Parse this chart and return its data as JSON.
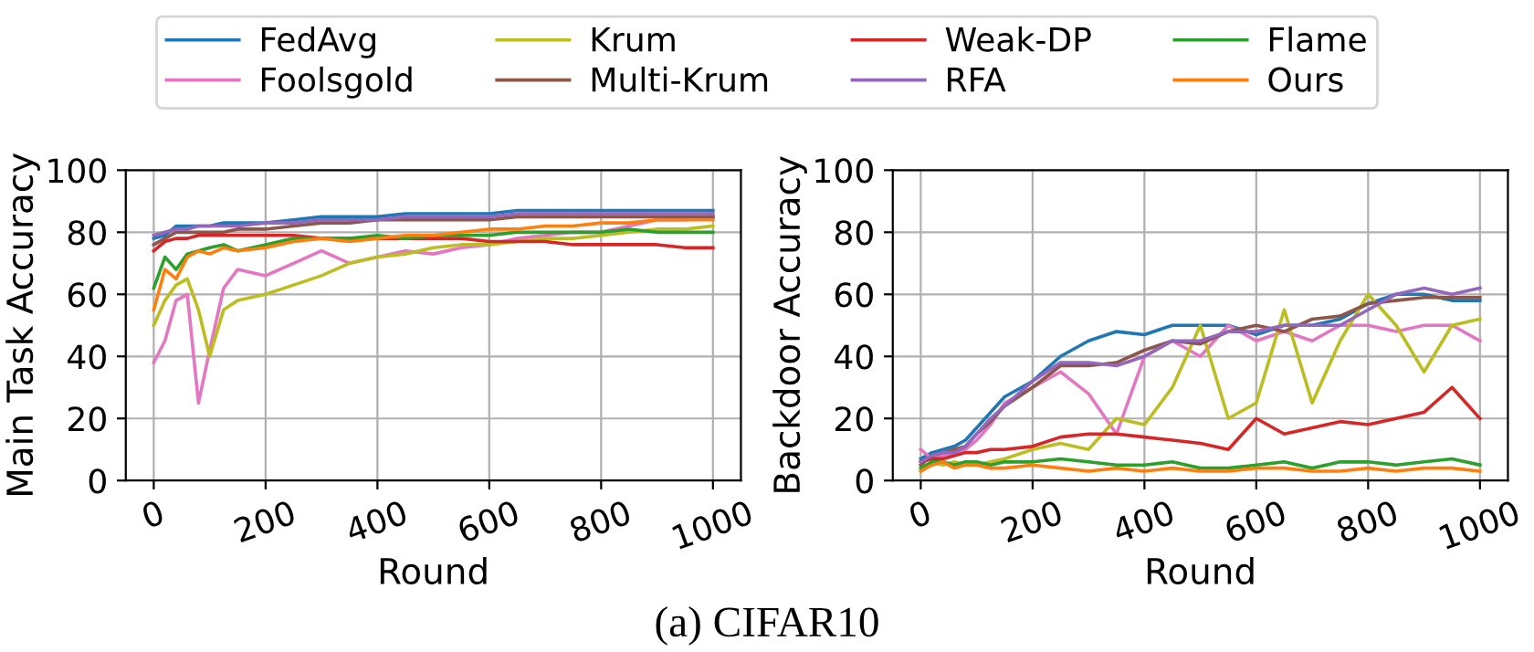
{
  "chart_data": [
    {
      "type": "line",
      "ylabel": "Main Task Accuracy",
      "xlabel": "Round",
      "legend": "top",
      "grid": true,
      "xlim": [
        -50,
        1050
      ],
      "ylim": [
        0,
        100
      ],
      "xticks": [
        0,
        200,
        400,
        600,
        800,
        1000
      ],
      "yticks": [
        0,
        20,
        40,
        60,
        80,
        100
      ],
      "annotations": [
        "(a) CIFAR10"
      ],
      "x": [
        0,
        20,
        40,
        60,
        80,
        100,
        125,
        150,
        200,
        250,
        300,
        350,
        400,
        450,
        500,
        550,
        600,
        650,
        700,
        750,
        800,
        850,
        900,
        950,
        1000
      ],
      "series": [
        {
          "name": "FedAvg",
          "color": "#1f77b4",
          "values": [
            78,
            79,
            82,
            82,
            82,
            82,
            83,
            83,
            83,
            84,
            85,
            85,
            85,
            86,
            86,
            86,
            86,
            87,
            87,
            87,
            87,
            87,
            87,
            87,
            87
          ]
        },
        {
          "name": "Foolsgold",
          "color": "#e377c2",
          "values": [
            38,
            45,
            58,
            60,
            25,
            42,
            62,
            68,
            66,
            70,
            74,
            70,
            72,
            74,
            73,
            75,
            76,
            78,
            79,
            80,
            80,
            82,
            84,
            84,
            85
          ]
        },
        {
          "name": "Krum",
          "color": "#bcbd22",
          "values": [
            50,
            58,
            63,
            65,
            55,
            40,
            55,
            58,
            60,
            63,
            66,
            70,
            72,
            73,
            75,
            76,
            76,
            77,
            78,
            78,
            79,
            80,
            81,
            81,
            82
          ]
        },
        {
          "name": "Multi-Krum",
          "color": "#8c564b",
          "values": [
            76,
            78,
            80,
            80,
            80,
            80,
            80,
            81,
            81,
            82,
            83,
            83,
            84,
            84,
            84,
            84,
            84,
            85,
            85,
            85,
            85,
            85,
            85,
            85,
            85
          ]
        },
        {
          "name": "Weak-DP",
          "color": "#d62728",
          "values": [
            74,
            77,
            78,
            78,
            79,
            79,
            79,
            79,
            79,
            79,
            78,
            78,
            78,
            78,
            78,
            78,
            77,
            77,
            77,
            76,
            76,
            76,
            76,
            75,
            75
          ]
        },
        {
          "name": "RFA",
          "color": "#9467bd",
          "values": [
            79,
            80,
            81,
            81,
            82,
            82,
            82,
            82,
            83,
            83,
            84,
            84,
            84,
            85,
            85,
            85,
            85,
            86,
            86,
            86,
            86,
            86,
            86,
            86,
            86
          ]
        },
        {
          "name": "Flame",
          "color": "#2ca02c",
          "values": [
            62,
            72,
            68,
            73,
            74,
            75,
            76,
            74,
            76,
            78,
            78,
            78,
            79,
            78,
            79,
            79,
            79,
            80,
            80,
            80,
            80,
            81,
            80,
            80,
            80
          ]
        },
        {
          "name": "Ours",
          "color": "#ff7f0e",
          "values": [
            55,
            68,
            65,
            72,
            74,
            73,
            75,
            74,
            75,
            77,
            78,
            77,
            78,
            79,
            79,
            80,
            81,
            81,
            82,
            82,
            83,
            83,
            84,
            84,
            84
          ]
        }
      ]
    },
    {
      "type": "line",
      "ylabel": "Backdoor Accuracy",
      "xlabel": "Round",
      "grid": true,
      "xlim": [
        -50,
        1050
      ],
      "ylim": [
        0,
        100
      ],
      "xticks": [
        0,
        200,
        400,
        600,
        800,
        1000
      ],
      "yticks": [
        0,
        20,
        40,
        60,
        80,
        100
      ],
      "x": [
        0,
        20,
        40,
        60,
        80,
        100,
        125,
        150,
        200,
        250,
        300,
        350,
        400,
        450,
        500,
        550,
        600,
        650,
        700,
        750,
        800,
        850,
        900,
        950,
        1000
      ],
      "series": [
        {
          "color": "#1f77b4",
          "values": [
            7,
            9,
            10,
            11,
            13,
            17,
            22,
            27,
            32,
            40,
            45,
            48,
            47,
            50,
            50,
            50,
            47,
            50,
            50,
            52,
            57,
            60,
            60,
            58,
            58
          ]
        },
        {
          "color": "#e377c2",
          "values": [
            10,
            7,
            8,
            9,
            10,
            13,
            18,
            25,
            30,
            35,
            28,
            15,
            40,
            45,
            40,
            50,
            45,
            48,
            45,
            50,
            50,
            48,
            50,
            50,
            45
          ]
        },
        {
          "color": "#bcbd22",
          "values": [
            3,
            6,
            5,
            6,
            5,
            5,
            6,
            7,
            10,
            12,
            10,
            20,
            18,
            30,
            50,
            20,
            25,
            55,
            25,
            45,
            60,
            50,
            35,
            50,
            52
          ]
        },
        {
          "color": "#8c564b",
          "values": [
            5,
            8,
            9,
            10,
            11,
            15,
            19,
            24,
            30,
            37,
            37,
            38,
            42,
            45,
            44,
            48,
            50,
            48,
            52,
            53,
            57,
            58,
            59,
            59,
            59
          ]
        },
        {
          "color": "#d62728",
          "values": [
            6,
            7,
            7,
            8,
            9,
            9,
            10,
            10,
            11,
            14,
            15,
            15,
            14,
            13,
            12,
            10,
            20,
            15,
            17,
            19,
            18,
            20,
            22,
            30,
            20
          ]
        },
        {
          "color": "#9467bd",
          "values": [
            6,
            8,
            9,
            9,
            11,
            15,
            20,
            24,
            32,
            38,
            38,
            37,
            40,
            45,
            45,
            48,
            48,
            50,
            50,
            50,
            55,
            60,
            62,
            60,
            62
          ]
        },
        {
          "color": "#2ca02c",
          "values": [
            4,
            6,
            6,
            5,
            6,
            6,
            5,
            6,
            6,
            7,
            6,
            5,
            5,
            6,
            4,
            4,
            5,
            6,
            4,
            6,
            6,
            5,
            6,
            7,
            5
          ]
        },
        {
          "color": "#ff7f0e",
          "values": [
            3,
            5,
            6,
            4,
            5,
            5,
            4,
            4,
            5,
            4,
            3,
            4,
            3,
            4,
            3,
            3,
            4,
            4,
            3,
            3,
            4,
            3,
            4,
            4,
            3
          ]
        }
      ]
    }
  ]
}
